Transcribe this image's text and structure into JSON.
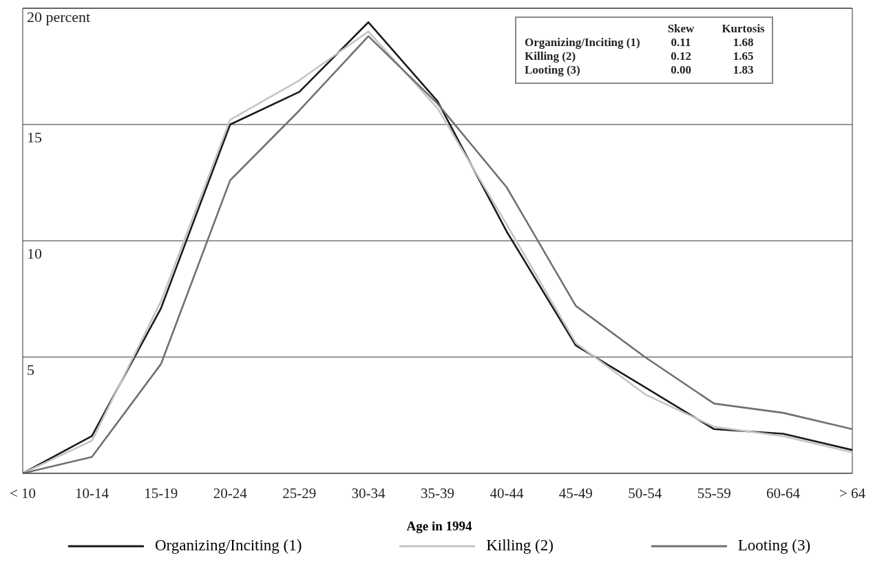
{
  "chart_data": {
    "type": "line",
    "xlabel": "Age in 1994",
    "categories": [
      "< 10",
      "10-14",
      "15-19",
      "20-24",
      "25-29",
      "30-34",
      "35-39",
      "40-44",
      "45-49",
      "50-54",
      "55-59",
      "60-64",
      "> 64"
    ],
    "series": [
      {
        "name": "Organizing/Inciting (1)",
        "color": "#1a1a1a",
        "values": [
          0,
          1.6,
          7.1,
          15.0,
          16.4,
          19.4,
          16.0,
          10.4,
          5.5,
          3.7,
          1.9,
          1.7,
          1.0
        ]
      },
      {
        "name": "Killing (2)",
        "color": "#c4c4c4",
        "values": [
          0,
          1.4,
          7.4,
          15.2,
          16.9,
          19.0,
          15.7,
          10.7,
          5.6,
          3.4,
          2.0,
          1.6,
          0.9
        ]
      },
      {
        "name": "Looting (3)",
        "color": "#707070",
        "values": [
          0,
          0.7,
          4.7,
          12.6,
          15.6,
          18.8,
          15.9,
          12.3,
          7.2,
          5.0,
          3.0,
          2.6,
          1.9
        ]
      }
    ],
    "ylim": [
      0,
      20
    ],
    "yticks": [
      {
        "value": 0,
        "label": null
      },
      5,
      10,
      15,
      {
        "value": 20,
        "label": "20 percent"
      }
    ],
    "grid": "y",
    "legend": "bottom",
    "marker": "none",
    "line_style": "solid",
    "annotations": [
      "Skew",
      "Kurtosis",
      "Organizing/Inciting (1)",
      "0.11",
      "1.68",
      "Killing (2)",
      "0.12",
      "1.65",
      "Looting (3)",
      "0.00",
      "1.83"
    ]
  }
}
